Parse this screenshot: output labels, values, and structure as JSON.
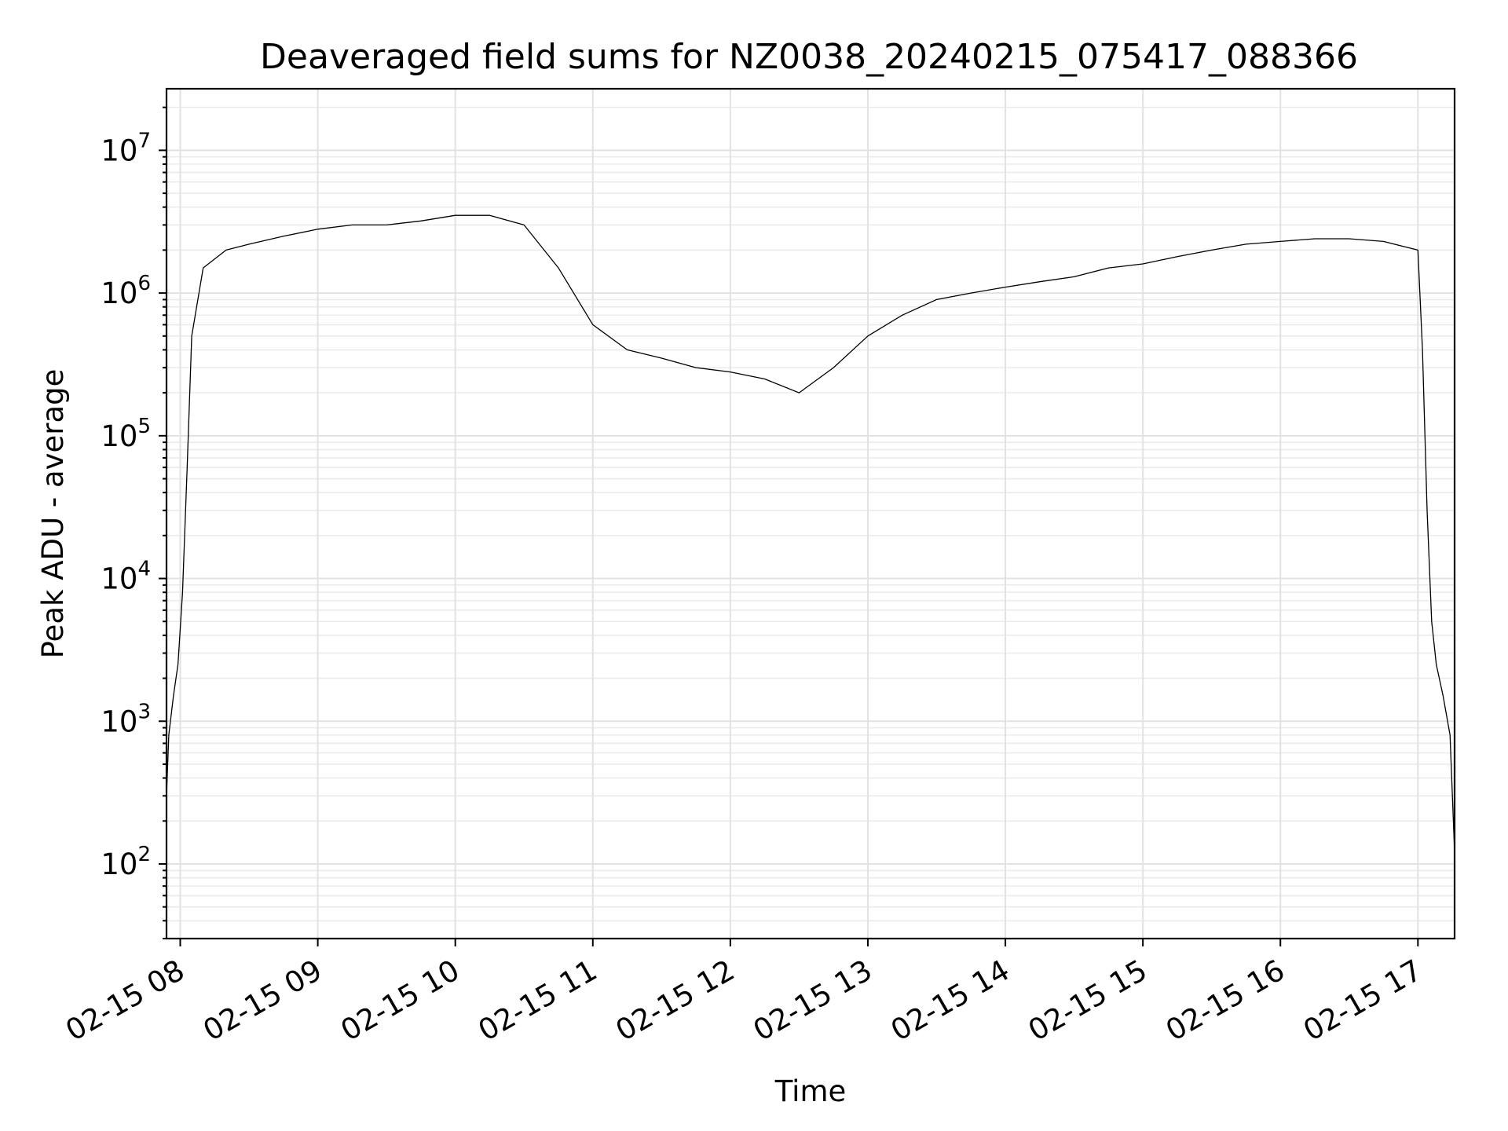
{
  "chart_data": {
    "type": "line",
    "title": "Deaveraged field sums for NZ0038_20240215_075417_088366",
    "xlabel": "Time",
    "ylabel": "Peak ADU - average",
    "yscale": "log",
    "grid": true,
    "x_ticks": [
      "02-15 08",
      "02-15 09",
      "02-15 10",
      "02-15 11",
      "02-15 12",
      "02-15 13",
      "02-15 14",
      "02-15 15",
      "02-15 16",
      "02-15 17"
    ],
    "y_ticks": [
      {
        "base": "10",
        "exp": "2",
        "value": 100
      },
      {
        "base": "10",
        "exp": "3",
        "value": 1000
      },
      {
        "base": "10",
        "exp": "4",
        "value": 10000
      },
      {
        "base": "10",
        "exp": "5",
        "value": 100000
      },
      {
        "base": "10",
        "exp": "6",
        "value": 1000000
      },
      {
        "base": "10",
        "exp": "7",
        "value": 10000000
      }
    ],
    "xlim": [
      "2024-02-15 07:54",
      "2024-02-15 17:16"
    ],
    "ylim": [
      30,
      27000000
    ],
    "series": [
      {
        "color": "#000000",
        "x": [
          "2024-02-15 07:54",
          "2024-02-15 07:55",
          "2024-02-15 07:57",
          "2024-02-15 07:59",
          "2024-02-15 08:01",
          "2024-02-15 08:03",
          "2024-02-15 08:05",
          "2024-02-15 08:10",
          "2024-02-15 08:20",
          "2024-02-15 08:30",
          "2024-02-15 08:45",
          "2024-02-15 09:00",
          "2024-02-15 09:15",
          "2024-02-15 09:30",
          "2024-02-15 09:45",
          "2024-02-15 10:00",
          "2024-02-15 10:15",
          "2024-02-15 10:30",
          "2024-02-15 10:45",
          "2024-02-15 11:00",
          "2024-02-15 11:15",
          "2024-02-15 11:30",
          "2024-02-15 11:45",
          "2024-02-15 12:00",
          "2024-02-15 12:15",
          "2024-02-15 12:30",
          "2024-02-15 12:45",
          "2024-02-15 13:00",
          "2024-02-15 13:15",
          "2024-02-15 13:30",
          "2024-02-15 13:45",
          "2024-02-15 14:00",
          "2024-02-15 14:15",
          "2024-02-15 14:30",
          "2024-02-15 14:45",
          "2024-02-15 15:00",
          "2024-02-15 15:15",
          "2024-02-15 15:30",
          "2024-02-15 15:45",
          "2024-02-15 16:00",
          "2024-02-15 16:15",
          "2024-02-15 16:30",
          "2024-02-15 16:45",
          "2024-02-15 17:00",
          "2024-02-15 17:02",
          "2024-02-15 17:04",
          "2024-02-15 17:06",
          "2024-02-15 17:08",
          "2024-02-15 17:11",
          "2024-02-15 17:14",
          "2024-02-15 17:16"
        ],
        "y": [
          300,
          800,
          1500,
          2500,
          8000,
          60000,
          500000,
          1500000,
          2000000,
          2200000,
          2500000,
          2800000,
          3000000,
          3000000,
          3200000,
          3500000,
          3500000,
          3000000,
          1500000,
          600000,
          400000,
          350000,
          300000,
          280000,
          250000,
          200000,
          300000,
          500000,
          700000,
          900000,
          1000000,
          1100000,
          1200000,
          1300000,
          1500000,
          1600000,
          1800000,
          2000000,
          2200000,
          2300000,
          2400000,
          2400000,
          2300000,
          2000000,
          400000,
          30000,
          5000,
          2500,
          1500,
          800,
          120
        ]
      }
    ]
  }
}
